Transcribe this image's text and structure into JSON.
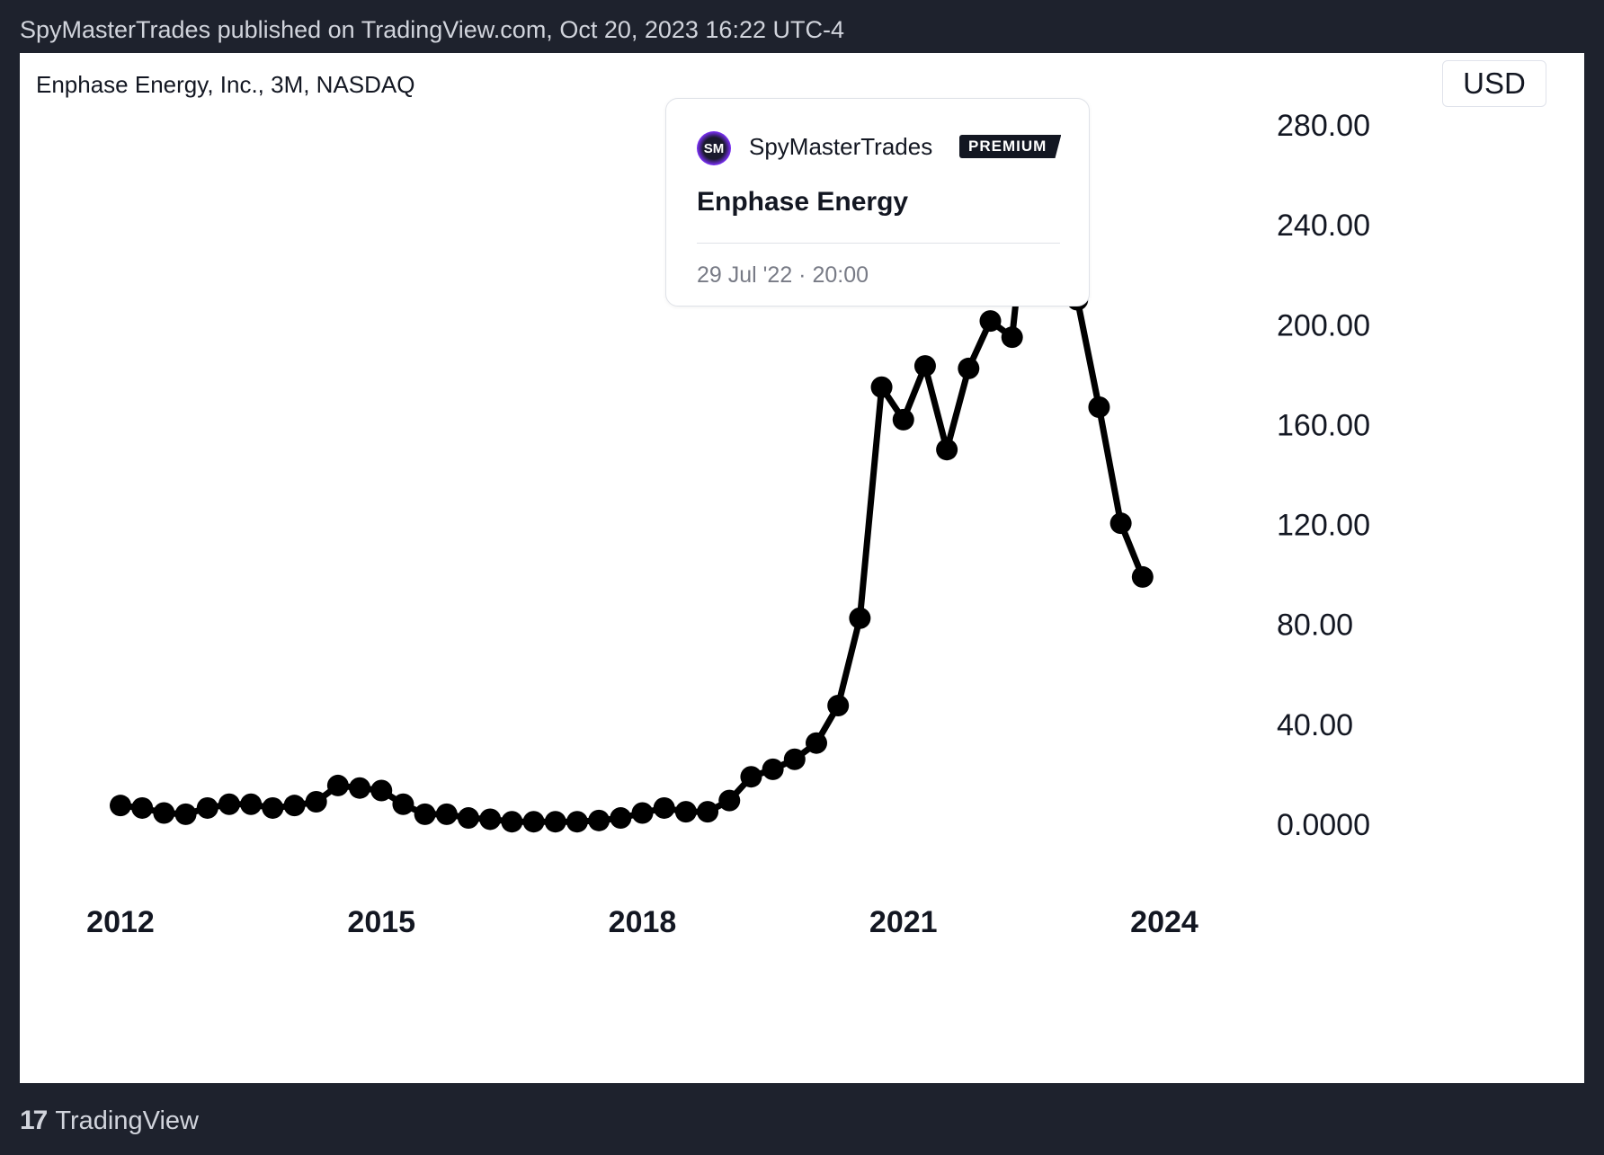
{
  "header": {
    "published": "SpyMasterTrades published on TradingView.com, Oct 20, 2023 16:22 UTC-4"
  },
  "symbol": {
    "title": "Enphase Energy, Inc., 3M, NASDAQ"
  },
  "currency": "USD",
  "card": {
    "avatar": "SM",
    "author": "SpyMasterTrades",
    "badge": "PREMIUM",
    "title": "Enphase Energy",
    "date": "29 Jul '22 · 20:00"
  },
  "footer": {
    "logo": "17",
    "brand": "TradingView"
  },
  "colors": {
    "background": "#1e222d",
    "panel": "#ffffff",
    "line": "#000000",
    "text": "#131722"
  },
  "chart_data": {
    "type": "line",
    "title": "Enphase Energy, Inc., 3M, NASDAQ",
    "ylim": [
      0,
      280
    ],
    "yticks": [
      "280.00",
      "240.00",
      "200.00",
      "160.00",
      "120.00",
      "80.00",
      "40.00",
      "0.0000"
    ],
    "ytick_values": [
      280,
      240,
      200,
      160,
      120,
      80,
      40,
      0
    ],
    "xticks": [
      "2012",
      "2015",
      "2018",
      "2021",
      "2024"
    ],
    "xtick_values": [
      2012,
      2015,
      2018,
      2021,
      2024
    ],
    "grid": false,
    "marker": "circle",
    "x": [
      2012.0,
      2012.25,
      2012.5,
      2012.75,
      2013.0,
      2013.25,
      2013.5,
      2013.75,
      2014.0,
      2014.25,
      2014.5,
      2014.75,
      2015.0,
      2015.25,
      2015.5,
      2015.75,
      2016.0,
      2016.25,
      2016.5,
      2016.75,
      2017.0,
      2017.25,
      2017.5,
      2017.75,
      2018.0,
      2018.25,
      2018.5,
      2018.75,
      2019.0,
      2019.25,
      2019.5,
      2019.75,
      2020.0,
      2020.25,
      2020.5,
      2020.75,
      2021.0,
      2021.25,
      2021.5,
      2021.75,
      2022.0,
      2022.25,
      2022.5,
      2022.75,
      2023.0,
      2023.25,
      2023.5,
      2023.75
    ],
    "values": [
      7.5,
      6.5,
      4.5,
      4.0,
      6.5,
      8.0,
      8.0,
      6.5,
      7.5,
      9.0,
      15.5,
      14.5,
      13.5,
      8.0,
      4.0,
      4.0,
      2.5,
      2.0,
      1.0,
      1.0,
      1.0,
      1.0,
      1.5,
      2.5,
      4.5,
      6.5,
      5.0,
      5.0,
      9.5,
      19.0,
      22.0,
      26.0,
      32.5,
      47.5,
      82.5,
      175.0,
      162.0,
      183.5,
      150.0,
      182.5,
      201.5,
      195.0,
      277.0,
      264.5,
      210.0,
      167.0,
      120.5,
      99.0
    ]
  }
}
